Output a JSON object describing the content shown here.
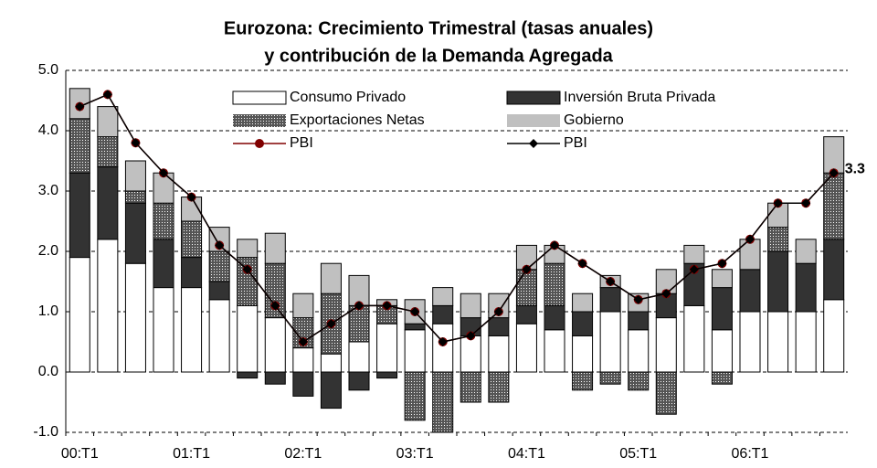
{
  "chart_data": {
    "type": "stacked_bar_line",
    "title": [
      "Eurozona: Crecimiento Trimestral (tasas anuales)",
      "y contribución de la Demanda Agregada"
    ],
    "categories": [
      "00:T1",
      null,
      null,
      null,
      "01:T1",
      null,
      null,
      null,
      "02:T1",
      null,
      null,
      null,
      "03:T1",
      null,
      null,
      null,
      "04:T1",
      null,
      null,
      null,
      "05:T1",
      null,
      null,
      null,
      "06:T1",
      null,
      null,
      null
    ],
    "series": [
      {
        "name": "Consumo Privado",
        "type": "bar",
        "color": "#ffffff",
        "values": [
          1.9,
          2.2,
          1.8,
          1.4,
          1.4,
          1.2,
          1.1,
          0.9,
          0.4,
          0.3,
          0.5,
          0.8,
          0.7,
          0.8,
          0.6,
          0.6,
          0.8,
          0.7,
          0.6,
          1.0,
          0.7,
          0.9,
          1.1,
          0.7,
          1.0,
          1.0,
          1.0,
          1.2
        ]
      },
      {
        "name": "Inversión Bruta Privada",
        "type": "bar",
        "color": "#333333",
        "values": [
          1.4,
          1.2,
          1.0,
          0.8,
          0.5,
          0.3,
          -0.1,
          -0.2,
          -0.4,
          -0.6,
          -0.3,
          -0.1,
          0.1,
          0.3,
          0.3,
          0.3,
          0.3,
          0.4,
          0.4,
          0.4,
          0.3,
          0.4,
          0.7,
          0.7,
          0.7,
          1.0,
          0.8,
          1.0
        ]
      },
      {
        "name": "Exportaciones Netas",
        "type": "bar",
        "color": "#555555",
        "hatch": true,
        "values": [
          0.9,
          0.5,
          0.2,
          0.6,
          0.6,
          0.5,
          0.8,
          0.9,
          0.5,
          1.0,
          0.6,
          0.3,
          -0.8,
          -1.0,
          -0.5,
          -0.5,
          0.6,
          0.7,
          -0.3,
          -0.2,
          -0.3,
          -0.7,
          0.0,
          -0.2,
          0.0,
          0.4,
          0.0,
          1.1
        ]
      },
      {
        "name": "Gobierno",
        "type": "bar",
        "color": "#c0c0c0",
        "values": [
          0.5,
          0.5,
          0.5,
          0.5,
          0.4,
          0.4,
          0.3,
          0.5,
          0.4,
          0.5,
          0.5,
          0.1,
          0.4,
          0.3,
          0.4,
          0.4,
          0.4,
          0.3,
          0.3,
          0.2,
          0.3,
          0.4,
          0.3,
          0.3,
          0.5,
          0.4,
          0.4,
          0.6
        ]
      },
      {
        "name": "PBI",
        "type": "line",
        "color": "#800000",
        "marker": "circle",
        "values": [
          4.4,
          4.6,
          3.8,
          3.3,
          2.9,
          2.1,
          1.7,
          1.1,
          0.5,
          0.8,
          1.1,
          1.1,
          1.0,
          0.5,
          0.6,
          1.0,
          1.7,
          2.1,
          1.8,
          1.5,
          1.2,
          1.3,
          1.7,
          1.8,
          2.2,
          2.8,
          2.8,
          3.3
        ]
      },
      {
        "name": "PBI",
        "type": "line",
        "color": "#000000",
        "marker": "diamond",
        "values": [
          4.4,
          4.6,
          3.8,
          3.3,
          2.9,
          2.1,
          1.7,
          1.1,
          0.5,
          0.8,
          1.1,
          1.1,
          1.0,
          0.5,
          0.6,
          1.0,
          1.7,
          2.1,
          1.8,
          1.5,
          1.2,
          1.3,
          1.7,
          1.8,
          2.2,
          2.8,
          2.8,
          3.3
        ]
      }
    ],
    "ylim": [
      -1,
      5
    ],
    "yticks": [
      {
        "value": -1,
        "label": "-1.0"
      },
      {
        "value": 0,
        "label": "0.0"
      },
      {
        "value": 1,
        "label": "1.0"
      },
      {
        "value": 2,
        "label": "2.0"
      },
      {
        "value": 3,
        "label": "3.0"
      },
      {
        "value": 4,
        "label": "4.0"
      },
      {
        "value": 5,
        "label": "5.0"
      }
    ],
    "grid": true
  }
}
